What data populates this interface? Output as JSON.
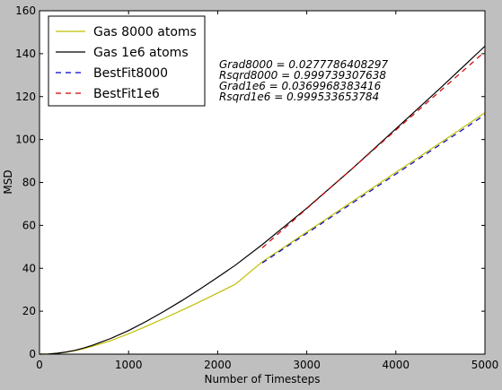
{
  "chart_data": {
    "type": "line",
    "title": "",
    "xlabel": "Number of Timesteps",
    "ylabel": "MSD",
    "xlim": [
      0,
      5000
    ],
    "ylim": [
      0,
      160
    ],
    "xticks": [
      0,
      1000,
      2000,
      3000,
      4000,
      5000
    ],
    "yticks": [
      0,
      20,
      40,
      60,
      80,
      100,
      120,
      140,
      160
    ],
    "grid": false,
    "legend_position": "top-left",
    "series": [
      {
        "name": "Gas 8000 atoms",
        "color": "#bfbf00",
        "style": "solid",
        "x": [
          0,
          100,
          200,
          300,
          400,
          500,
          600,
          800,
          1000,
          1200,
          1400,
          1600,
          1800,
          2000,
          2200,
          2500,
          3000,
          3500,
          4000,
          4500,
          5000
        ],
        "y": [
          0,
          0.1,
          0.4,
          0.9,
          1.6,
          2.6,
          3.7,
          6.3,
          9.5,
          13.0,
          16.7,
          20.5,
          24.4,
          28.5,
          32.6,
          43.0,
          56.9,
          70.8,
          84.7,
          98.5,
          112.5
        ]
      },
      {
        "name": "Gas 1e6 atoms",
        "color": "#000000",
        "style": "solid",
        "x": [
          0,
          100,
          200,
          300,
          400,
          500,
          600,
          800,
          1000,
          1200,
          1400,
          1600,
          1800,
          2000,
          2200,
          2500,
          3000,
          3500,
          4000,
          4500,
          5000
        ],
        "y": [
          0,
          0.1,
          0.4,
          1.0,
          1.8,
          2.9,
          4.2,
          7.3,
          11.0,
          15.3,
          20.0,
          25.0,
          30.3,
          35.8,
          41.5,
          51.0,
          68.0,
          86.0,
          105.0,
          124.0,
          143.5
        ]
      },
      {
        "name": "BestFit8000",
        "color": "#0000cc",
        "style": "dashed",
        "x": [
          2500,
          5000
        ],
        "y": [
          42.5,
          111.5
        ]
      },
      {
        "name": "BestFit1e6",
        "color": "#cc0000",
        "style": "dashed",
        "x": [
          2500,
          5000
        ],
        "y": [
          49.5,
          141.0
        ]
      }
    ],
    "annotations": [
      "Grad8000 = 0.0277786408297",
      "Rsqrd8000 = 0.999739307638",
      "Grad1e6 = 0.0369968383416",
      "Rsqrd1e6 = 0.999533653784"
    ]
  }
}
